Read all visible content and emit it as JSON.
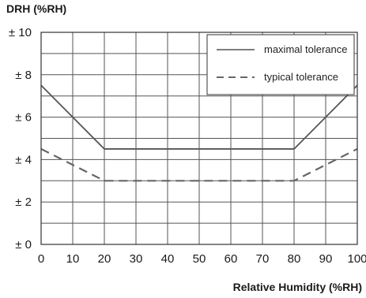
{
  "chart_data": {
    "type": "line",
    "title": "",
    "ylabel": "DRH (%RH)",
    "xlabel": "Relative Humidity (%RH)",
    "xlim": [
      0,
      100
    ],
    "ylim": [
      0,
      10
    ],
    "x_ticks": [
      0,
      10,
      20,
      30,
      40,
      50,
      60,
      70,
      80,
      90,
      100
    ],
    "x_tick_labels": [
      "0",
      "10",
      "20",
      "30",
      "40",
      "50",
      "60",
      "70",
      "80",
      "90",
      "100"
    ],
    "y_ticks": [
      0,
      2,
      4,
      6,
      8,
      10
    ],
    "y_tick_labels": [
      "± 0",
      "± 2",
      "± 4",
      "± 6",
      "± 8",
      "± 10"
    ],
    "grid": true,
    "legend_position": "top-right",
    "series": [
      {
        "name": "maximal tolerance",
        "style": "solid",
        "color": "#555555",
        "x": [
          0,
          20,
          80,
          100
        ],
        "y": [
          7.5,
          4.5,
          4.5,
          7.5
        ]
      },
      {
        "name": "typical tolerance",
        "style": "dashed",
        "color": "#666666",
        "x": [
          0,
          20,
          80,
          100
        ],
        "y": [
          4.5,
          3.0,
          3.0,
          4.5
        ]
      }
    ]
  }
}
